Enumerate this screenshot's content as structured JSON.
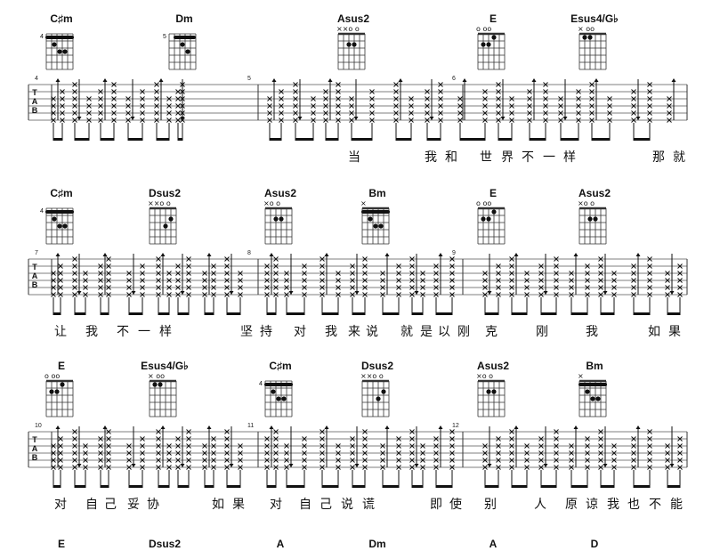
{
  "tab_label": [
    "T",
    "A",
    "B"
  ],
  "systems": [
    {
      "chords": [
        {
          "name": "C♯m",
          "fret": "4",
          "marks": ""
        },
        {
          "name": "Dm",
          "fret": "5",
          "marks": ""
        },
        {
          "name": "Asus2",
          "fret": "",
          "marks": "××o  o"
        },
        {
          "name": "E",
          "fret": "",
          "marks": "o   oo"
        },
        {
          "name": "Esus4/G♭",
          "fret": "",
          "marks": "  × oo"
        }
      ],
      "measure_numbers": [
        "4",
        "5",
        "6"
      ],
      "lyrics": [
        "当",
        "我",
        "和",
        "世",
        "界",
        "不",
        "一",
        "样",
        "那",
        "就"
      ]
    },
    {
      "chords": [
        {
          "name": "C♯m",
          "fret": "4",
          "marks": ""
        },
        {
          "name": "Dsus2",
          "fret": "",
          "marks": "××o  o"
        },
        {
          "name": "Asus2",
          "fret": "",
          "marks": "×o  o"
        },
        {
          "name": "Bm",
          "fret": "",
          "marks": "×"
        },
        {
          "name": "E",
          "fret": "",
          "marks": "o   oo"
        },
        {
          "name": "Asus2",
          "fret": "",
          "marks": "×o  o"
        }
      ],
      "measure_numbers": [
        "7",
        "8",
        "9"
      ],
      "lyrics": [
        "让",
        "我",
        "不",
        "一",
        "样",
        "坚",
        "持",
        "对",
        "我",
        "来",
        "说",
        "就",
        "是",
        "以",
        "刚",
        "克",
        "刚",
        "我",
        "如",
        "果"
      ]
    },
    {
      "chords": [
        {
          "name": "E",
          "fret": "",
          "marks": "o   oo"
        },
        {
          "name": "Esus4/G♭",
          "fret": "",
          "marks": "  × oo"
        },
        {
          "name": "C♯m",
          "fret": "4",
          "marks": ""
        },
        {
          "name": "Dsus2",
          "fret": "",
          "marks": "××o  o"
        },
        {
          "name": "Asus2",
          "fret": "",
          "marks": "×o  o"
        },
        {
          "name": "Bm",
          "fret": "",
          "marks": "×"
        }
      ],
      "measure_numbers": [
        "10",
        "11",
        "12"
      ],
      "lyrics": [
        "对",
        "自",
        "己",
        "妥",
        "协",
        "如",
        "果",
        "对",
        "自",
        "己",
        "说",
        "谎",
        "即",
        "使",
        "别",
        "人",
        "原",
        "谅",
        "我",
        "也",
        "不",
        "能"
      ]
    },
    {
      "chords": [
        {
          "name": "E",
          "fret": "",
          "marks": ""
        },
        {
          "name": "Dsus2",
          "fret": "",
          "marks": ""
        },
        {
          "name": "A",
          "fret": "",
          "marks": ""
        },
        {
          "name": "Dm",
          "fret": "",
          "marks": ""
        },
        {
          "name": "A",
          "fret": "",
          "marks": ""
        },
        {
          "name": "D",
          "fret": "",
          "marks": ""
        }
      ],
      "measure_numbers": [],
      "lyrics": []
    }
  ]
}
